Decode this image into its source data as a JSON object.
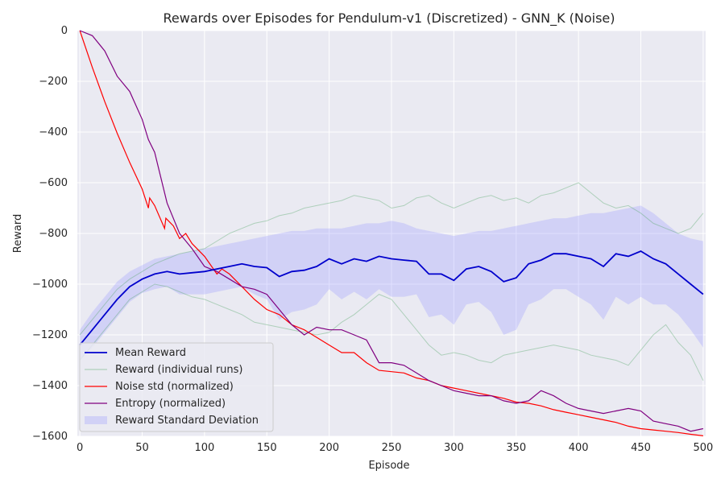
{
  "chart_data": {
    "type": "line",
    "title": "Rewards over Episodes for Pendulum-v1 (Discretized) - GNN_K (Noise)",
    "xlabel": "Episode",
    "ylabel": "Reward",
    "xlim": [
      -2,
      502
    ],
    "ylim": [
      -1600,
      0
    ],
    "xticks": [
      0,
      50,
      100,
      150,
      200,
      250,
      300,
      350,
      400,
      450,
      500
    ],
    "yticks": [
      0,
      -200,
      -400,
      -600,
      -800,
      -1000,
      -1200,
      -1400,
      -1600
    ],
    "grid": true,
    "background": "#eaeaf2",
    "legend_position": "lower-left",
    "series": [
      {
        "name": "Mean Reward",
        "color": "#0000cc",
        "x": [
          0,
          10,
          20,
          30,
          40,
          50,
          60,
          70,
          80,
          90,
          100,
          110,
          120,
          130,
          140,
          150,
          160,
          170,
          180,
          190,
          200,
          210,
          220,
          230,
          240,
          250,
          260,
          270,
          280,
          290,
          300,
          310,
          320,
          330,
          340,
          350,
          360,
          370,
          380,
          390,
          400,
          410,
          420,
          430,
          440,
          450,
          460,
          470,
          480,
          490,
          500
        ],
        "values": [
          -1240,
          -1180,
          -1120,
          -1060,
          -1010,
          -980,
          -960,
          -950,
          -960,
          -955,
          -950,
          -940,
          -930,
          -920,
          -930,
          -935,
          -970,
          -950,
          -945,
          -930,
          -900,
          -920,
          -900,
          -910,
          -890,
          -900,
          -905,
          -910,
          -960,
          -960,
          -985,
          -940,
          -930,
          -950,
          -990,
          -975,
          -920,
          -905,
          -880,
          -880,
          -890,
          -900,
          -930,
          -880,
          -890,
          -870,
          -900,
          -920,
          -960,
          -1000,
          -1040
        ]
      },
      {
        "name": "Reward (individual runs)",
        "color": "#55a868",
        "x": [
          0,
          10,
          20,
          30,
          40,
          50,
          60,
          70,
          80,
          90,
          100,
          110,
          120,
          130,
          140,
          150,
          160,
          170,
          180,
          190,
          200,
          210,
          220,
          230,
          240,
          250,
          260,
          270,
          280,
          290,
          300,
          310,
          320,
          330,
          340,
          350,
          360,
          370,
          380,
          390,
          400,
          410,
          420,
          430,
          440,
          450,
          460,
          470,
          480,
          490,
          500
        ],
        "runs": [
          [
            -1200,
            -1140,
            -1080,
            -1020,
            -980,
            -950,
            -920,
            -900,
            -880,
            -870,
            -860,
            -830,
            -800,
            -780,
            -760,
            -750,
            -730,
            -720,
            -700,
            -690,
            -680,
            -670,
            -650,
            -660,
            -670,
            -700,
            -690,
            -660,
            -650,
            -680,
            -700,
            -680,
            -660,
            -650,
            -670,
            -660,
            -680,
            -650,
            -640,
            -620,
            -600,
            -640,
            -680,
            -700,
            -690,
            -720,
            -760,
            -780,
            -800,
            -780,
            -720
          ],
          [
            -1300,
            -1240,
            -1180,
            -1120,
            -1060,
            -1030,
            -1000,
            -1010,
            -1030,
            -1050,
            -1060,
            -1080,
            -1100,
            -1120,
            -1150,
            -1160,
            -1170,
            -1180,
            -1190,
            -1200,
            -1190,
            -1150,
            -1120,
            -1080,
            -1040,
            -1060,
            -1120,
            -1180,
            -1240,
            -1280,
            -1270,
            -1280,
            -1300,
            -1310,
            -1280,
            -1270,
            -1260,
            -1250,
            -1240,
            -1250,
            -1260,
            -1280,
            -1290,
            -1300,
            -1320,
            -1260,
            -1200,
            -1160,
            -1230,
            -1280,
            -1380
          ]
        ]
      },
      {
        "name": "Noise std (normalized)",
        "color": "#ff0000",
        "x": [
          0,
          10,
          20,
          30,
          40,
          50,
          55,
          56,
          60,
          68,
          69,
          75,
          80,
          85,
          90,
          100,
          110,
          114,
          120,
          130,
          140,
          150,
          160,
          170,
          180,
          190,
          200,
          210,
          220,
          230,
          240,
          250,
          260,
          270,
          280,
          290,
          300,
          310,
          320,
          330,
          340,
          350,
          360,
          370,
          380,
          390,
          400,
          410,
          420,
          430,
          440,
          450,
          460,
          470,
          480,
          490,
          500
        ],
        "values": [
          0,
          -145,
          -280,
          -405,
          -520,
          -625,
          -700,
          -660,
          -690,
          -780,
          -740,
          -770,
          -820,
          -800,
          -840,
          -890,
          -960,
          -940,
          -960,
          -1010,
          -1060,
          -1100,
          -1120,
          -1160,
          -1180,
          -1210,
          -1240,
          -1270,
          -1270,
          -1310,
          -1340,
          -1345,
          -1350,
          -1370,
          -1380,
          -1400,
          -1410,
          -1420,
          -1430,
          -1440,
          -1450,
          -1465,
          -1470,
          -1480,
          -1495,
          -1505,
          -1515,
          -1525,
          -1535,
          -1545,
          -1560,
          -1570,
          -1575,
          -1580,
          -1585,
          -1592,
          -1598
        ]
      },
      {
        "name": "Entropy (normalized)",
        "color": "#800080",
        "x": [
          0,
          10,
          20,
          30,
          40,
          50,
          55,
          60,
          70,
          80,
          90,
          100,
          110,
          120,
          130,
          140,
          150,
          160,
          170,
          180,
          190,
          200,
          210,
          220,
          230,
          240,
          250,
          260,
          270,
          280,
          290,
          300,
          310,
          320,
          330,
          340,
          350,
          360,
          370,
          380,
          390,
          400,
          410,
          420,
          430,
          440,
          450,
          460,
          470,
          480,
          490,
          500
        ],
        "values": [
          0,
          -20,
          -80,
          -180,
          -240,
          -350,
          -430,
          -480,
          -680,
          -800,
          -860,
          -930,
          -950,
          -980,
          -1010,
          -1020,
          -1040,
          -1100,
          -1160,
          -1200,
          -1170,
          -1180,
          -1180,
          -1200,
          -1220,
          -1310,
          -1310,
          -1320,
          -1350,
          -1380,
          -1400,
          -1420,
          -1430,
          -1440,
          -1440,
          -1460,
          -1470,
          -1460,
          -1420,
          -1440,
          -1470,
          -1490,
          -1500,
          -1510,
          -1500,
          -1490,
          -1500,
          -1540,
          -1550,
          -1560,
          -1580,
          -1570
        ]
      }
    ],
    "std_band": {
      "name": "Reward Standard Deviation",
      "color": "#9999ff",
      "opacity": 0.3,
      "x": [
        0,
        10,
        20,
        30,
        40,
        50,
        60,
        70,
        80,
        90,
        100,
        110,
        120,
        130,
        140,
        150,
        160,
        170,
        180,
        190,
        200,
        210,
        220,
        230,
        240,
        250,
        260,
        270,
        280,
        290,
        300,
        310,
        320,
        330,
        340,
        350,
        360,
        370,
        380,
        390,
        400,
        410,
        420,
        430,
        440,
        450,
        460,
        470,
        480,
        490,
        500
      ],
      "upper": [
        -1180,
        -1110,
        -1050,
        -990,
        -950,
        -925,
        -900,
        -890,
        -880,
        -870,
        -860,
        -850,
        -840,
        -830,
        -820,
        -810,
        -800,
        -790,
        -790,
        -780,
        -780,
        -780,
        -770,
        -760,
        -760,
        -750,
        -760,
        -780,
        -790,
        -800,
        -810,
        -800,
        -790,
        -790,
        -780,
        -770,
        -760,
        -750,
        -740,
        -740,
        -730,
        -720,
        -720,
        -710,
        -700,
        -690,
        -720,
        -760,
        -800,
        -820,
        -830
      ],
      "lower": [
        -1300,
        -1250,
        -1190,
        -1130,
        -1070,
        -1035,
        -1020,
        -1010,
        -1040,
        -1040,
        -1040,
        -1030,
        -1020,
        -1010,
        -1040,
        -1060,
        -1140,
        -1110,
        -1100,
        -1080,
        -1020,
        -1060,
        -1030,
        -1060,
        -1020,
        -1050,
        -1050,
        -1040,
        -1130,
        -1120,
        -1160,
        -1080,
        -1070,
        -1110,
        -1200,
        -1180,
        -1080,
        -1060,
        -1020,
        -1020,
        -1050,
        -1080,
        -1140,
        -1050,
        -1080,
        -1050,
        -1080,
        -1080,
        -1120,
        -1180,
        -1250
      ]
    }
  }
}
